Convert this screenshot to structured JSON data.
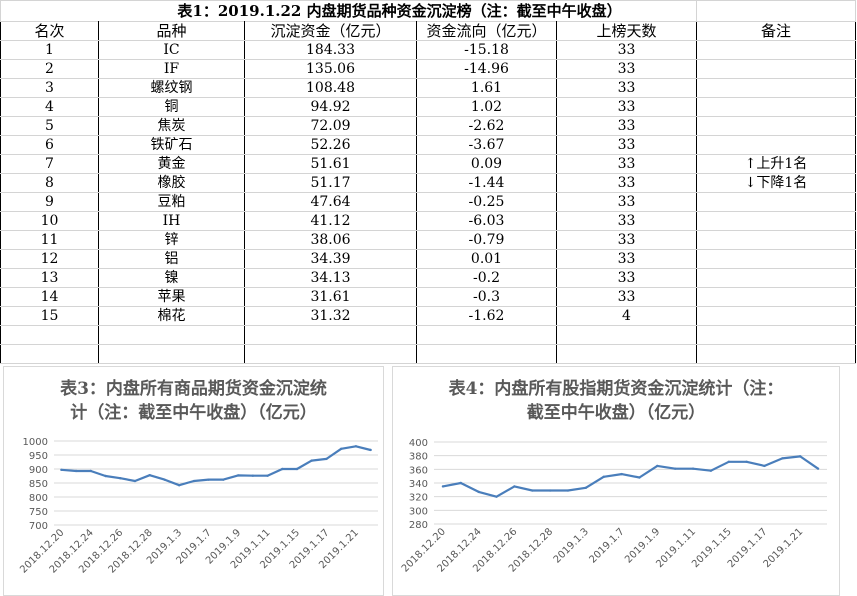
{
  "sheet": {
    "title": "表1：2019.1.22 内盘期货品种资金沉淀榜（注：截至中午收盘）",
    "headers": [
      "名次",
      "品种",
      "沉淀资金（亿元）",
      "资金流向（亿元）",
      "上榜天数",
      "备注"
    ],
    "rows": [
      {
        "rank": "1",
        "name": "IC",
        "capital": "184.33",
        "flow": "-15.18",
        "days": "33",
        "note": ""
      },
      {
        "rank": "2",
        "name": "IF",
        "capital": "135.06",
        "flow": "-14.96",
        "days": "33",
        "note": ""
      },
      {
        "rank": "3",
        "name": "螺纹钢",
        "capital": "108.48",
        "flow": "1.61",
        "days": "33",
        "note": ""
      },
      {
        "rank": "4",
        "name": "铜",
        "capital": "94.92",
        "flow": "1.02",
        "days": "33",
        "note": ""
      },
      {
        "rank": "5",
        "name": "焦炭",
        "capital": "72.09",
        "flow": "-2.62",
        "days": "33",
        "note": ""
      },
      {
        "rank": "6",
        "name": "铁矿石",
        "capital": "52.26",
        "flow": "-3.67",
        "days": "33",
        "note": ""
      },
      {
        "rank": "7",
        "name": "黄金",
        "capital": "51.61",
        "flow": "0.09",
        "days": "33",
        "note": "↑上升1名"
      },
      {
        "rank": "8",
        "name": "橡胶",
        "capital": "51.17",
        "flow": "-1.44",
        "days": "33",
        "note": "↓下降1名"
      },
      {
        "rank": "9",
        "name": "豆粕",
        "capital": "47.64",
        "flow": "-0.25",
        "days": "33",
        "note": ""
      },
      {
        "rank": "10",
        "name": "IH",
        "capital": "41.12",
        "flow": "-6.03",
        "days": "33",
        "note": ""
      },
      {
        "rank": "11",
        "name": "锌",
        "capital": "38.06",
        "flow": "-0.79",
        "days": "33",
        "note": ""
      },
      {
        "rank": "12",
        "name": "铝",
        "capital": "34.39",
        "flow": "0.01",
        "days": "33",
        "note": ""
      },
      {
        "rank": "13",
        "name": "镍",
        "capital": "34.13",
        "flow": "-0.2",
        "days": "33",
        "note": ""
      },
      {
        "rank": "14",
        "name": "苹果",
        "capital": "31.61",
        "flow": "-0.3",
        "days": "33",
        "note": ""
      },
      {
        "rank": "15",
        "name": "棉花",
        "capital": "31.32",
        "flow": "-1.62",
        "days": "4",
        "note": ""
      }
    ]
  },
  "chart_data": [
    {
      "type": "line",
      "title": "表3：内盘所有商品期货资金沉淀统计（注：截至中午收盘）（亿元）",
      "title_lines": [
        "表3：内盘所有商品期货资金沉淀统",
        "计（注：截至中午收盘）（亿元）"
      ],
      "x": [
        "2018.12.20",
        "2018.12.21",
        "2018.12.24",
        "2018.12.25",
        "2018.12.26",
        "2018.12.27",
        "2018.12.28",
        "2019.1.2",
        "2019.1.3",
        "2019.1.4",
        "2019.1.7",
        "2019.1.8",
        "2019.1.9",
        "2019.1.10",
        "2019.1.11",
        "2019.1.14",
        "2019.1.15",
        "2019.1.16",
        "2019.1.17",
        "2019.1.18",
        "2019.1.21",
        "2019.1.22"
      ],
      "x_tick_labels": [
        "2018.12.20",
        "2018.12.24",
        "2018.12.26",
        "2018.12.28",
        "2019.1.3",
        "2019.1.7",
        "2019.1.9",
        "2019.1.11",
        "2019.1.15",
        "2019.1.17",
        "2019.1.21"
      ],
      "values": [
        897,
        893,
        893,
        875,
        867,
        857,
        878,
        862,
        842,
        857,
        862,
        862,
        877,
        876,
        876,
        900,
        900,
        930,
        936,
        972,
        981,
        968
      ],
      "ylim": [
        700,
        1000
      ],
      "yticks": [
        700,
        750,
        800,
        850,
        900,
        950,
        1000
      ],
      "grid": true,
      "line_color": "#4a7ebb"
    },
    {
      "type": "line",
      "title": "表4：内盘所有股指期货资金沉淀统计（注：截至中午收盘）（亿元）",
      "title_lines": [
        "表4：内盘所有股指期货资金沉淀统计（注：",
        "截至中午收盘）（亿元）"
      ],
      "x": [
        "2018.12.20",
        "2018.12.21",
        "2018.12.24",
        "2018.12.25",
        "2018.12.26",
        "2018.12.27",
        "2018.12.28",
        "2019.1.2",
        "2019.1.3",
        "2019.1.4",
        "2019.1.7",
        "2019.1.8",
        "2019.1.9",
        "2019.1.10",
        "2019.1.11",
        "2019.1.14",
        "2019.1.15",
        "2019.1.16",
        "2019.1.17",
        "2019.1.18",
        "2019.1.21",
        "2019.1.22"
      ],
      "x_tick_labels": [
        "2018.12.20",
        "2018.12.24",
        "2018.12.26",
        "2018.12.28",
        "2019.1.3",
        "2019.1.7",
        "2019.1.9",
        "2019.1.11",
        "2019.1.15",
        "2019.1.17",
        "2019.1.21"
      ],
      "values": [
        335,
        340,
        327,
        320,
        335,
        329,
        329,
        329,
        333,
        349,
        353,
        348,
        365,
        361,
        361,
        358,
        371,
        371,
        365,
        376,
        379,
        361
      ],
      "ylim": [
        280,
        400
      ],
      "yticks": [
        280,
        300,
        320,
        340,
        360,
        380,
        400
      ],
      "grid": true,
      "line_color": "#4a7ebb"
    }
  ]
}
